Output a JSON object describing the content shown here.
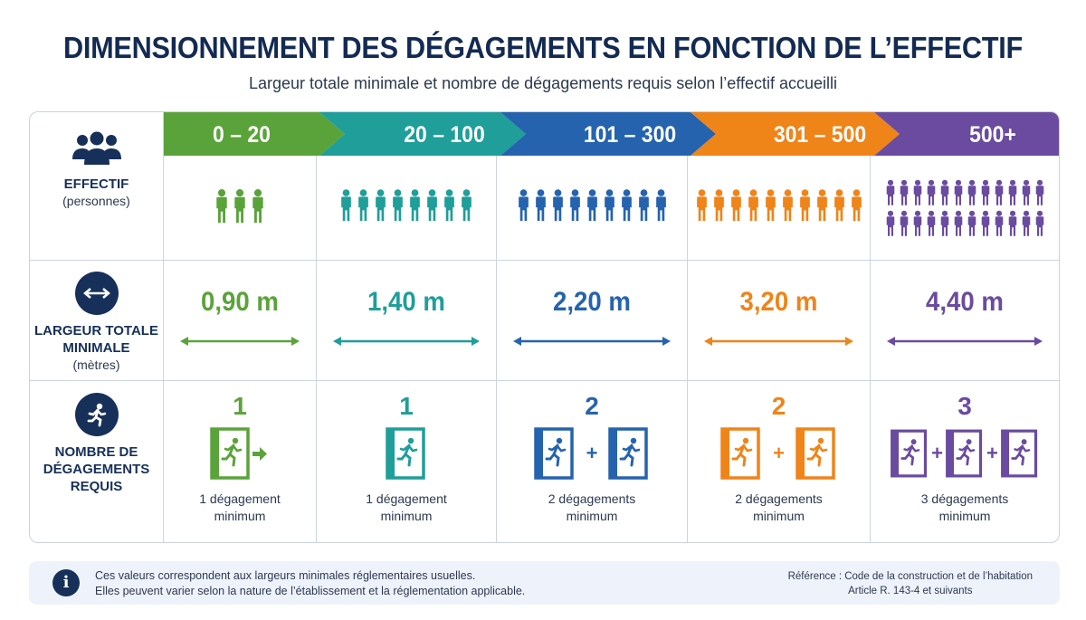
{
  "title": "DIMENSIONNEMENT DES DÉGAGEMENTS EN FONCTION DE L’EFFECTIF",
  "subtitle": "Largeur totale minimale et nombre de dégagements requis selon l’effectif accueilli",
  "row_labels": {
    "effectif": {
      "main": "EFFECTIF",
      "sub": "(personnes)",
      "icon": "people-group-icon"
    },
    "largeur": {
      "main_1": "LARGEUR TOTALE",
      "main_2": "MINIMALE",
      "sub": "(mètres)",
      "icon": "double-arrow-icon"
    },
    "degagements": {
      "main_1": "NOMBRE DE",
      "main_2": "DÉGAGEMENTS",
      "main_3": "REQUIS",
      "icon": "running-person-icon"
    }
  },
  "columns": [
    {
      "range": "0 – 20",
      "color": "#5aa33a",
      "people_shown": 3,
      "width": "0,90 m",
      "exits": "1",
      "exit_doors": 1,
      "caption_1": "1 dégagement",
      "caption_2": "minimum"
    },
    {
      "range": "20 – 100",
      "color": "#1f9e9a",
      "people_shown": 8,
      "width": "1,40 m",
      "exits": "1",
      "exit_doors": 1,
      "caption_1": "1 dégagement",
      "caption_2": "minimum"
    },
    {
      "range": "101 – 300",
      "color": "#2563ae",
      "people_shown": 9,
      "width": "2,20 m",
      "exits": "2",
      "exit_doors": 2,
      "caption_1": "2 dégagements",
      "caption_2": "minimum"
    },
    {
      "range": "301 – 500",
      "color": "#ef8419",
      "people_shown": 10,
      "width": "3,20 m",
      "exits": "2",
      "exit_doors": 2,
      "caption_1": "2 dégagements",
      "caption_2": "minimum"
    },
    {
      "range": "500+",
      "color": "#6a4ba0",
      "people_shown": 24,
      "width": "4,40 m",
      "exits": "3",
      "exit_doors": 3,
      "caption_1": "3 dégagements",
      "caption_2": "minimum"
    }
  ],
  "footer": {
    "note_1": "Ces valeurs correspondent aux largeurs minimales réglementaires usuelles.",
    "note_2": "Elles peuvent varier selon la nature de l’établissement et la réglementation applicable.",
    "ref_1": "Référence : Code de la construction et de l’habitation",
    "ref_2": "Article R. 143-4 et suivants",
    "info_glyph": "i"
  },
  "colors": {
    "navy": "#17305a",
    "border": "#cdd5e0",
    "footer_bg": "#eef3fb"
  }
}
